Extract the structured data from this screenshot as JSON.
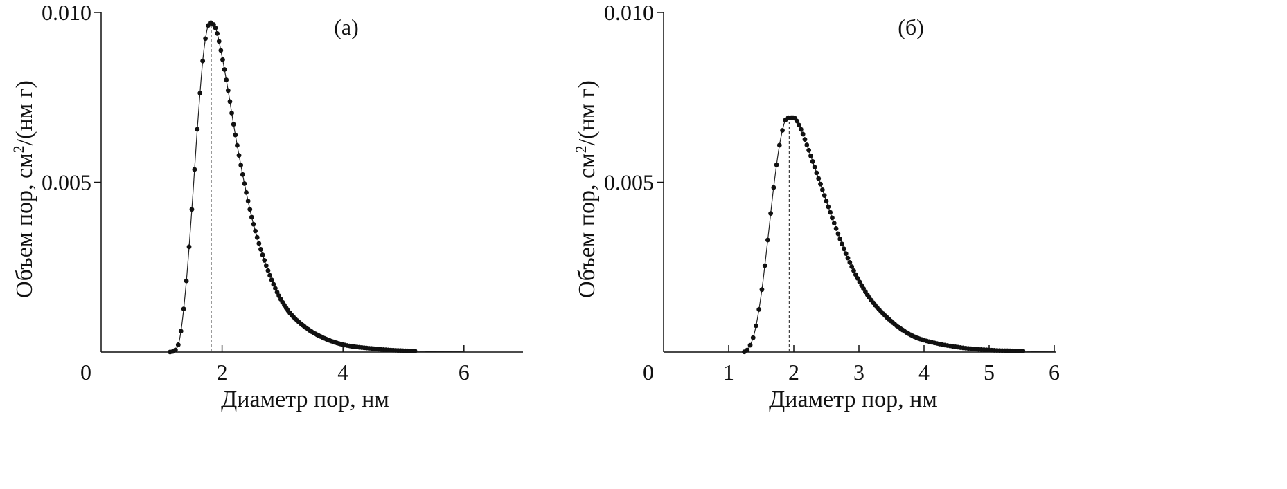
{
  "chart_data": [
    {
      "type": "scatter",
      "panel_label": "(а)",
      "xlabel": "Диаметр пор, нм",
      "ylabel": "Объем пор, см",
      "ylabel_sup": "2",
      "ylabel_tail": "/(нм г)",
      "xlim": [
        0,
        7
      ],
      "ylim": [
        0,
        0.01
      ],
      "x_ticks": [
        0,
        2,
        4,
        6
      ],
      "x_tick_labels": [
        "0",
        "2",
        "4",
        "6"
      ],
      "y_ticks": [
        0.005,
        0.01
      ],
      "y_tick_labels": [
        "0.005",
        "0.010"
      ],
      "grid": false,
      "markers": "filled circles connected by thin line",
      "peak_marker": {
        "x": 1.82,
        "style": "dashed vertical line"
      },
      "series": [
        {
          "points": [
            [
              0.0,
              0.0
            ],
            [
              1.1,
              0.0
            ],
            [
              1.2,
              3e-05
            ],
            [
              1.3,
              0.0004
            ],
            [
              1.4,
              0.0019
            ],
            [
              1.5,
              0.0042
            ],
            [
              1.6,
              0.0068
            ],
            [
              1.7,
              0.0089
            ],
            [
              1.8,
              0.0097
            ],
            [
              1.9,
              0.0095
            ],
            [
              2.0,
              0.0087
            ],
            [
              2.1,
              0.0077
            ],
            [
              2.2,
              0.0066
            ],
            [
              2.3,
              0.0056
            ],
            [
              2.4,
              0.0047
            ],
            [
              2.5,
              0.0039
            ],
            [
              2.7,
              0.0027
            ],
            [
              2.9,
              0.0018
            ],
            [
              3.1,
              0.0012
            ],
            [
              3.4,
              0.0007
            ],
            [
              3.7,
              0.0004
            ],
            [
              4.0,
              0.00022
            ],
            [
              4.5,
              0.0001
            ],
            [
              5.0,
              4e-05
            ],
            [
              5.5,
              2e-05
            ],
            [
              6.0,
              1e-05
            ]
          ]
        }
      ]
    },
    {
      "type": "scatter",
      "panel_label": "(б)",
      "xlabel": "Диаметр пор, нм",
      "ylabel": "Объем пор, см",
      "ylabel_sup": "2",
      "ylabel_tail": "/(нм г)",
      "xlim": [
        0,
        6.5
      ],
      "ylim": [
        0,
        0.01
      ],
      "x_ticks": [
        0,
        1,
        2,
        3,
        4,
        5,
        6
      ],
      "x_tick_labels": [
        "0",
        "1",
        "2",
        "3",
        "4",
        "5",
        "6"
      ],
      "y_ticks": [
        0.005,
        0.01
      ],
      "y_tick_labels": [
        "0.005",
        "0.010"
      ],
      "grid": false,
      "markers": "filled circles connected by thin line",
      "peak_marker": {
        "x": 1.93,
        "style": "dashed vertical line"
      },
      "series": [
        {
          "points": [
            [
              0.0,
              0.0
            ],
            [
              1.2,
              0.0
            ],
            [
              1.3,
              0.0001
            ],
            [
              1.4,
              0.0006
            ],
            [
              1.5,
              0.0017
            ],
            [
              1.6,
              0.0033
            ],
            [
              1.7,
              0.005
            ],
            [
              1.8,
              0.0063
            ],
            [
              1.9,
              0.0069
            ],
            [
              2.0,
              0.0069
            ],
            [
              2.1,
              0.0066
            ],
            [
              2.2,
              0.0061
            ],
            [
              2.4,
              0.005
            ],
            [
              2.6,
              0.0039
            ],
            [
              2.8,
              0.0029
            ],
            [
              3.0,
              0.0021
            ],
            [
              3.2,
              0.0015
            ],
            [
              3.5,
              0.0009
            ],
            [
              3.8,
              0.0005
            ],
            [
              4.0,
              0.00035
            ],
            [
              4.5,
              0.00015
            ],
            [
              5.0,
              6e-05
            ],
            [
              5.5,
              3e-05
            ],
            [
              6.0,
              1e-05
            ]
          ]
        }
      ]
    }
  ]
}
